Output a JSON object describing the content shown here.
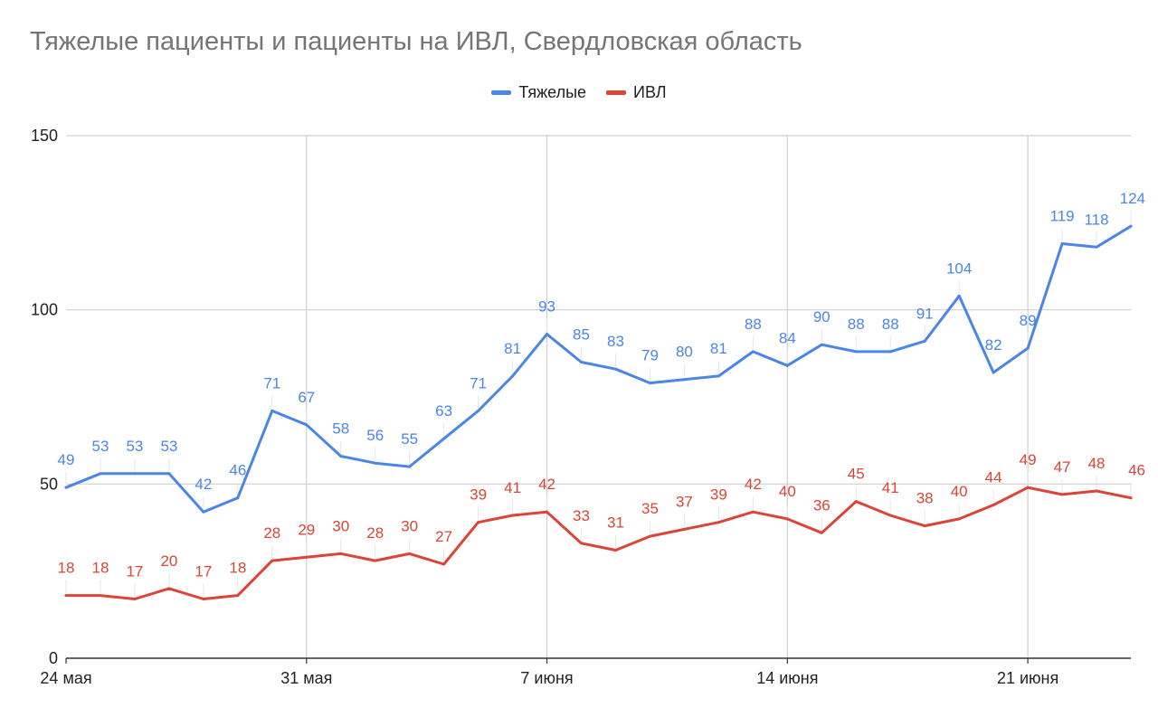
{
  "title": "Тяжелые пациенты и пациенты на ИВЛ, Свердловская область",
  "chart_data": {
    "type": "line",
    "title": "Тяжелые пациенты и пациенты на ИВЛ, Свердловская область",
    "x_start": "24 мая",
    "x_ticks": [
      "24 мая",
      "31 мая",
      "7 июня",
      "14 июня",
      "21 июня"
    ],
    "x_tick_index": [
      0,
      7,
      14,
      21,
      28
    ],
    "y_ticks": [
      "0",
      "50",
      "100",
      "150"
    ],
    "ylim": [
      0,
      150
    ],
    "grid": true,
    "legend_position": "top",
    "series": [
      {
        "name": "Тяжелые",
        "color": "#4a86e8",
        "values": [
          49,
          53,
          53,
          53,
          42,
          46,
          71,
          67,
          58,
          56,
          55,
          63,
          71,
          81,
          93,
          85,
          83,
          79,
          80,
          81,
          88,
          84,
          90,
          88,
          88,
          91,
          104,
          82,
          89,
          119,
          118,
          124
        ]
      },
      {
        "name": "ИВЛ",
        "color": "#db4437",
        "values": [
          18,
          18,
          17,
          20,
          17,
          18,
          28,
          29,
          30,
          28,
          30,
          27,
          39,
          41,
          42,
          33,
          31,
          35,
          37,
          39,
          42,
          40,
          36,
          45,
          41,
          38,
          40,
          44,
          49,
          47,
          48,
          46
        ]
      }
    ]
  }
}
